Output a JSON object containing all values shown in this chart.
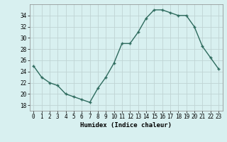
{
  "x": [
    0,
    1,
    2,
    3,
    4,
    5,
    6,
    7,
    8,
    9,
    10,
    11,
    12,
    13,
    14,
    15,
    16,
    17,
    18,
    19,
    20,
    21,
    22,
    23
  ],
  "y": [
    25,
    23,
    22,
    21.5,
    20,
    19.5,
    19,
    18.5,
    21,
    23,
    25.5,
    29,
    29,
    31,
    33.5,
    35,
    35,
    34.5,
    34,
    34,
    32,
    28.5,
    26.5,
    24.5
  ],
  "xlabel": "Humidex (Indice chaleur)",
  "ylim": [
    17,
    36
  ],
  "xlim": [
    -0.5,
    23.5
  ],
  "yticks": [
    18,
    20,
    22,
    24,
    26,
    28,
    30,
    32,
    34
  ],
  "xticks": [
    0,
    1,
    2,
    3,
    4,
    5,
    6,
    7,
    8,
    9,
    10,
    11,
    12,
    13,
    14,
    15,
    16,
    17,
    18,
    19,
    20,
    21,
    22,
    23
  ],
  "line_color": "#2e6b5e",
  "marker": "+",
  "bg_color": "#d8f0f0",
  "grid_color": "#c0d4d4",
  "label_fontsize": 6.5,
  "tick_fontsize": 5.5
}
